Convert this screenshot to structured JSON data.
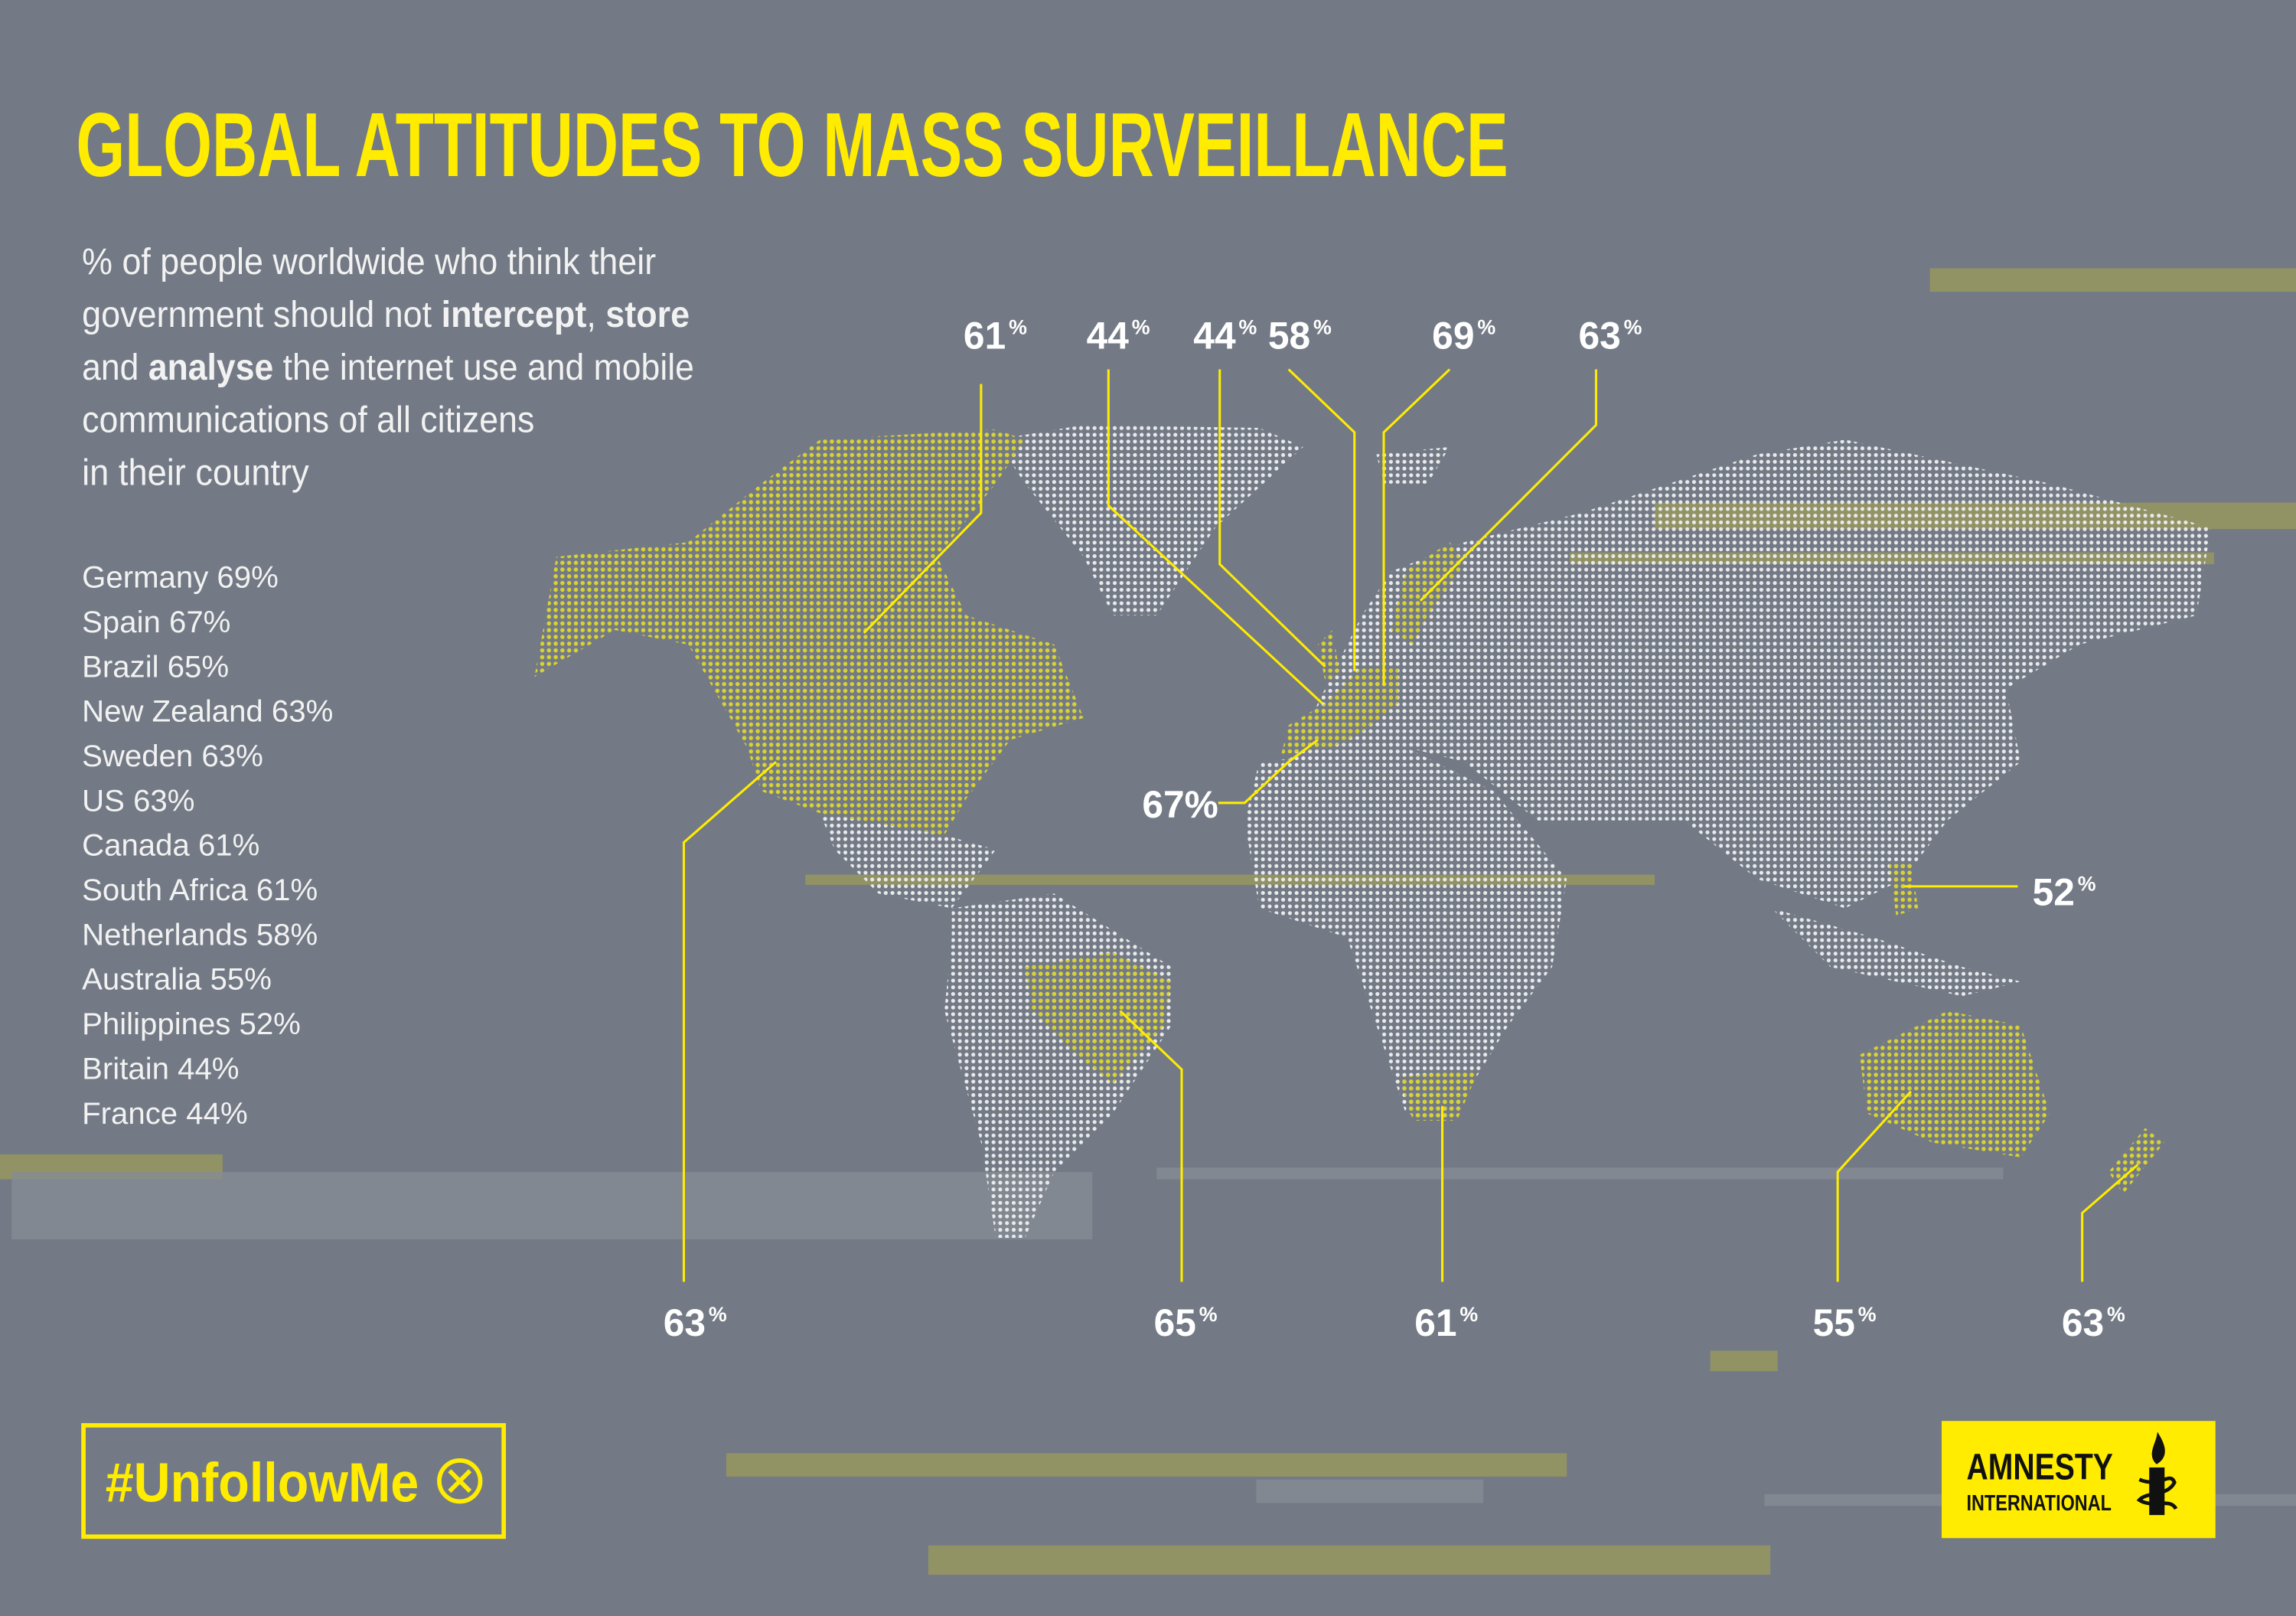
{
  "title": "GLOBAL ATTITUDES TO MASS SURVEILLANCE",
  "subtitle": {
    "lines": [
      {
        "parts": [
          {
            "text": "% of people worldwide who think their"
          }
        ]
      },
      {
        "parts": [
          {
            "text": "government should not "
          },
          {
            "text": "intercept",
            "bold": true
          },
          {
            "text": ", "
          },
          {
            "text": "store",
            "bold": true
          }
        ]
      },
      {
        "parts": [
          {
            "text": "and "
          },
          {
            "text": "analyse",
            "bold": true
          },
          {
            "text": " the internet use and mobile"
          }
        ]
      },
      {
        "parts": [
          {
            "text": "communications of all citizens"
          }
        ]
      },
      {
        "parts": [
          {
            "text": "in their country"
          }
        ]
      }
    ]
  },
  "country_list": [
    "Germany 69%",
    "Spain 67%",
    "Brazil 65%",
    "New Zealand 63%",
    "Sweden 63%",
    "US 63%",
    "Canada 61%",
    "South Africa 61%",
    "Netherlands 58%",
    "Australia 55%",
    "Philippines 52%",
    "Britain 44%",
    "France 44%"
  ],
  "callouts": [
    {
      "value": 61,
      "unit": "%"
    },
    {
      "value": 44,
      "unit": "%"
    },
    {
      "value": 44,
      "unit": "%"
    },
    {
      "value": 58,
      "unit": "%"
    },
    {
      "value": 69,
      "unit": "%"
    },
    {
      "value": 63,
      "unit": "%"
    },
    {
      "value": 67,
      "unit": "%"
    },
    {
      "value": 52,
      "unit": "%"
    },
    {
      "value": 63,
      "unit": "%"
    },
    {
      "value": 65,
      "unit": "%"
    },
    {
      "value": 61,
      "unit": "%"
    },
    {
      "value": 55,
      "unit": "%"
    },
    {
      "value": 63,
      "unit": "%"
    }
  ],
  "hashtag": "#UnfollowMe",
  "logo": {
    "line1": "AMNESTY",
    "line2": "INTERNATIONAL"
  }
}
